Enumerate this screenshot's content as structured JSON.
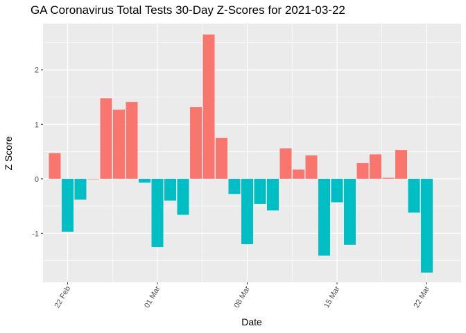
{
  "chart_data": {
    "type": "bar",
    "title": "GA Coronavirus Total Tests 30-Day Z-Scores for 2021-03-22",
    "xlabel": "Date",
    "ylabel": "Z Score",
    "x_tick_labels": [
      "22 Feb",
      "01 Mar",
      "08 Mar",
      "15 Mar",
      "22 Mar"
    ],
    "x_tick_dates": [
      "2021-02-22",
      "2021-03-01",
      "2021-03-08",
      "2021-03-15",
      "2021-03-22"
    ],
    "y_ticks": [
      -1,
      0,
      1,
      2
    ],
    "y_tick_labels": [
      "-1",
      "0",
      "1",
      "2"
    ],
    "ylim": [
      -1.9,
      2.85
    ],
    "grid": true,
    "legend": "none",
    "colors": {
      "positive": "#F8766D",
      "negative": "#00BFC4",
      "panel": "#EBEBEB",
      "grid": "#FFFFFF"
    },
    "dates": [
      "2021-02-21",
      "2021-02-22",
      "2021-02-23",
      "2021-02-24",
      "2021-02-25",
      "2021-02-26",
      "2021-02-27",
      "2021-02-28",
      "2021-03-01",
      "2021-03-02",
      "2021-03-03",
      "2021-03-04",
      "2021-03-05",
      "2021-03-06",
      "2021-03-07",
      "2021-03-08",
      "2021-03-09",
      "2021-03-10",
      "2021-03-11",
      "2021-03-12",
      "2021-03-13",
      "2021-03-14",
      "2021-03-15",
      "2021-03-16",
      "2021-03-17",
      "2021-03-18",
      "2021-03-19",
      "2021-03-20",
      "2021-03-21",
      "2021-03-22"
    ],
    "values": [
      0.47,
      -0.97,
      -0.38,
      0.0,
      1.48,
      1.27,
      1.41,
      -0.07,
      -1.25,
      -0.4,
      -0.66,
      1.32,
      2.65,
      0.75,
      -0.28,
      -1.2,
      -0.46,
      -0.58,
      0.56,
      0.17,
      0.43,
      -1.41,
      -0.43,
      -1.21,
      0.29,
      0.45,
      0.02,
      0.53,
      -0.62,
      -1.72
    ]
  }
}
